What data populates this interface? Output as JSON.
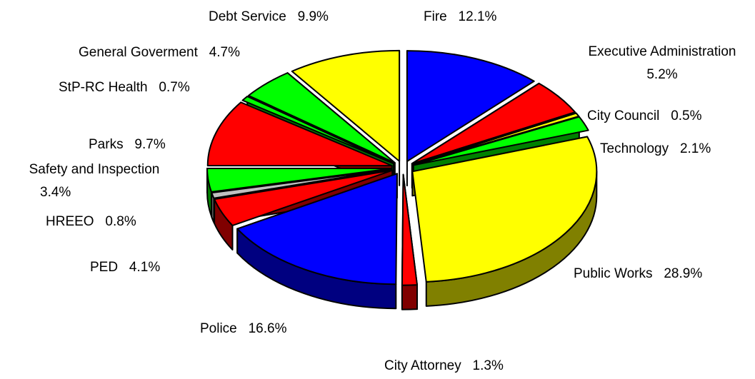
{
  "chart_data": {
    "type": "pie",
    "style": "3d-exploded",
    "title": "",
    "categories": [
      "Fire",
      "Executive Administration",
      "City Council",
      "Technology",
      "Public Works",
      "City Attorney",
      "Police",
      "PED",
      "HREEO",
      "Safety and Inspection",
      "Parks",
      "StP-RC Health",
      "General Goverment",
      "Debt Service"
    ],
    "values": [
      12.1,
      5.2,
      0.5,
      2.1,
      28.9,
      1.3,
      16.6,
      4.1,
      0.8,
      3.4,
      9.7,
      0.7,
      4.7,
      9.9
    ],
    "labels": [
      {
        "name": "Fire",
        "value": "12.1%"
      },
      {
        "name": "Executive Administration",
        "value": "5.2%"
      },
      {
        "name": "City Council",
        "value": "0.5%"
      },
      {
        "name": "Technology",
        "value": "2.1%"
      },
      {
        "name": "Public Works",
        "value": "28.9%"
      },
      {
        "name": "City Attorney",
        "value": "1.3%"
      },
      {
        "name": "Police",
        "value": "16.6%"
      },
      {
        "name": "PED",
        "value": "4.1%"
      },
      {
        "name": "HREEO",
        "value": "0.8%"
      },
      {
        "name": "Safety and Inspection",
        "value": "3.4%"
      },
      {
        "name": "Parks",
        "value": "9.7%"
      },
      {
        "name": "StP-RC Health",
        "value": "0.7%"
      },
      {
        "name": "General Goverment",
        "value": "4.7%"
      },
      {
        "name": "Debt Service",
        "value": "9.9%"
      }
    ],
    "colors": [
      "#0000ff",
      "#ff0000",
      "#ffff00",
      "#00ff00",
      "#ffff00",
      "#ff0000",
      "#0000ff",
      "#ff0000",
      "#c0c0c0",
      "#00ff00",
      "#ff0000",
      "#00ff00",
      "#00ff00",
      "#ffff00"
    ],
    "side_colors": [
      "#000080",
      "#800000",
      "#808000",
      "#008000",
      "#808000",
      "#800000",
      "#000080",
      "#800000",
      "#808080",
      "#008000",
      "#800000",
      "#008000",
      "#008000",
      "#808000"
    ],
    "legend": "none"
  }
}
